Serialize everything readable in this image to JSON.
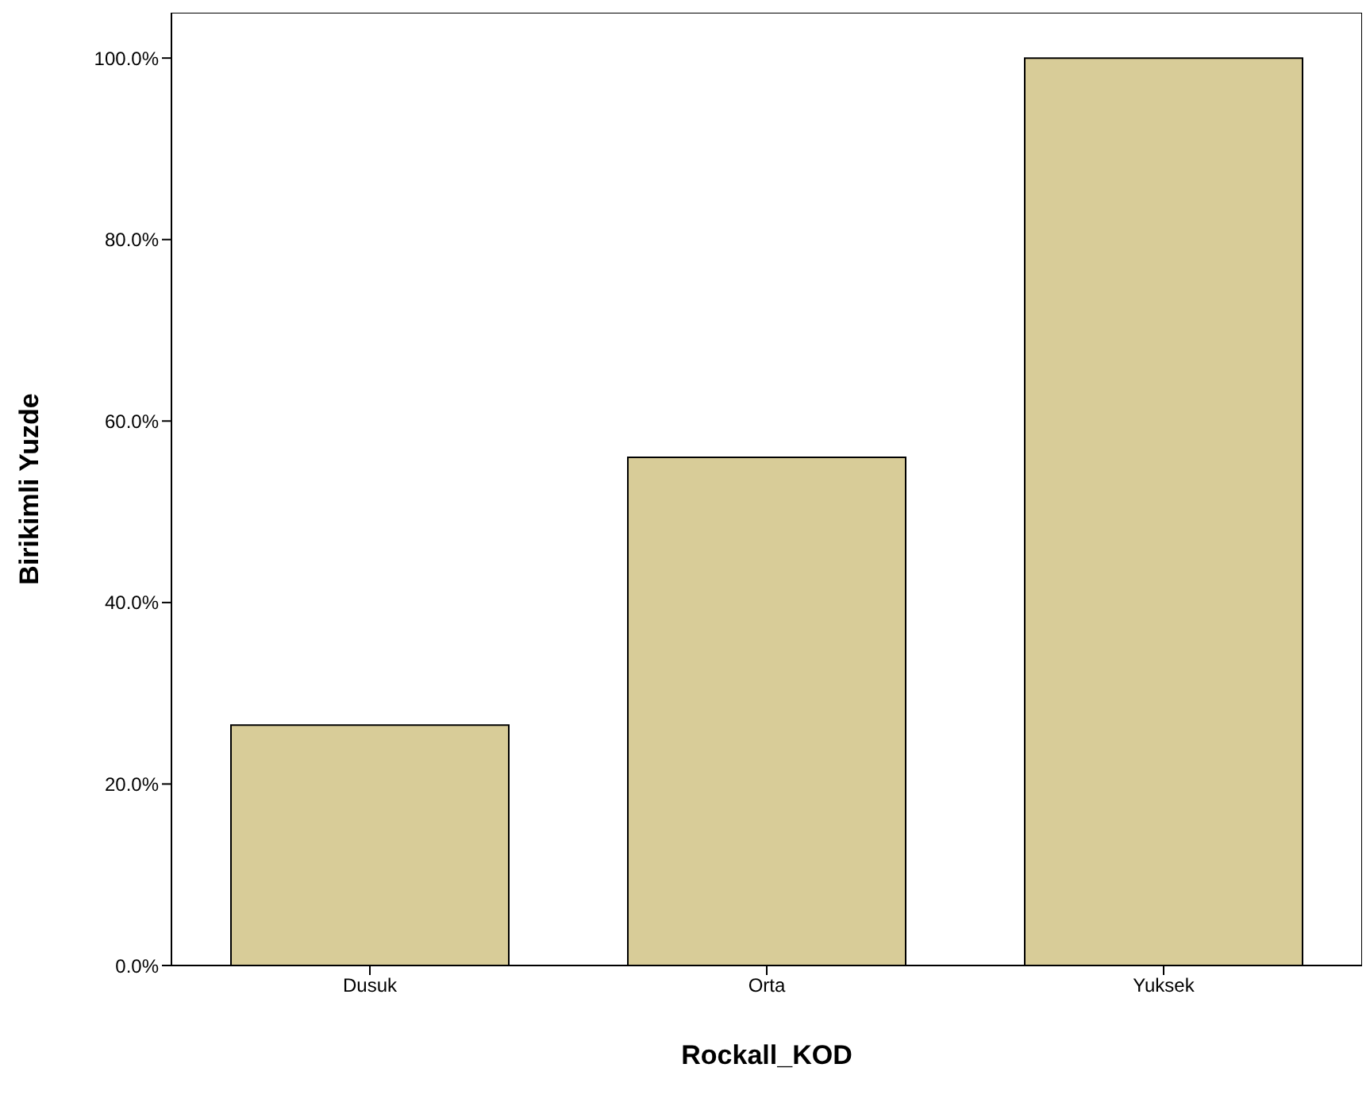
{
  "chart_data": {
    "type": "bar",
    "xlabel": "Rockall_KOD",
    "ylabel": "Birikimli Yuzde",
    "categories": [
      "Dusuk",
      "Orta",
      "Yuksek"
    ],
    "values": [
      26.5,
      56,
      100
    ],
    "color": "#d8cc98",
    "ylim": [
      0,
      105
    ],
    "yticks": [
      {
        "value": 0,
        "label": "0.0%"
      },
      {
        "value": 20,
        "label": "20.0%"
      },
      {
        "value": 40,
        "label": "40.0%"
      },
      {
        "value": 60,
        "label": "60.0%"
      },
      {
        "value": 80,
        "label": "80.0%"
      },
      {
        "value": 100,
        "label": "100.0%"
      }
    ],
    "grid": false
  }
}
